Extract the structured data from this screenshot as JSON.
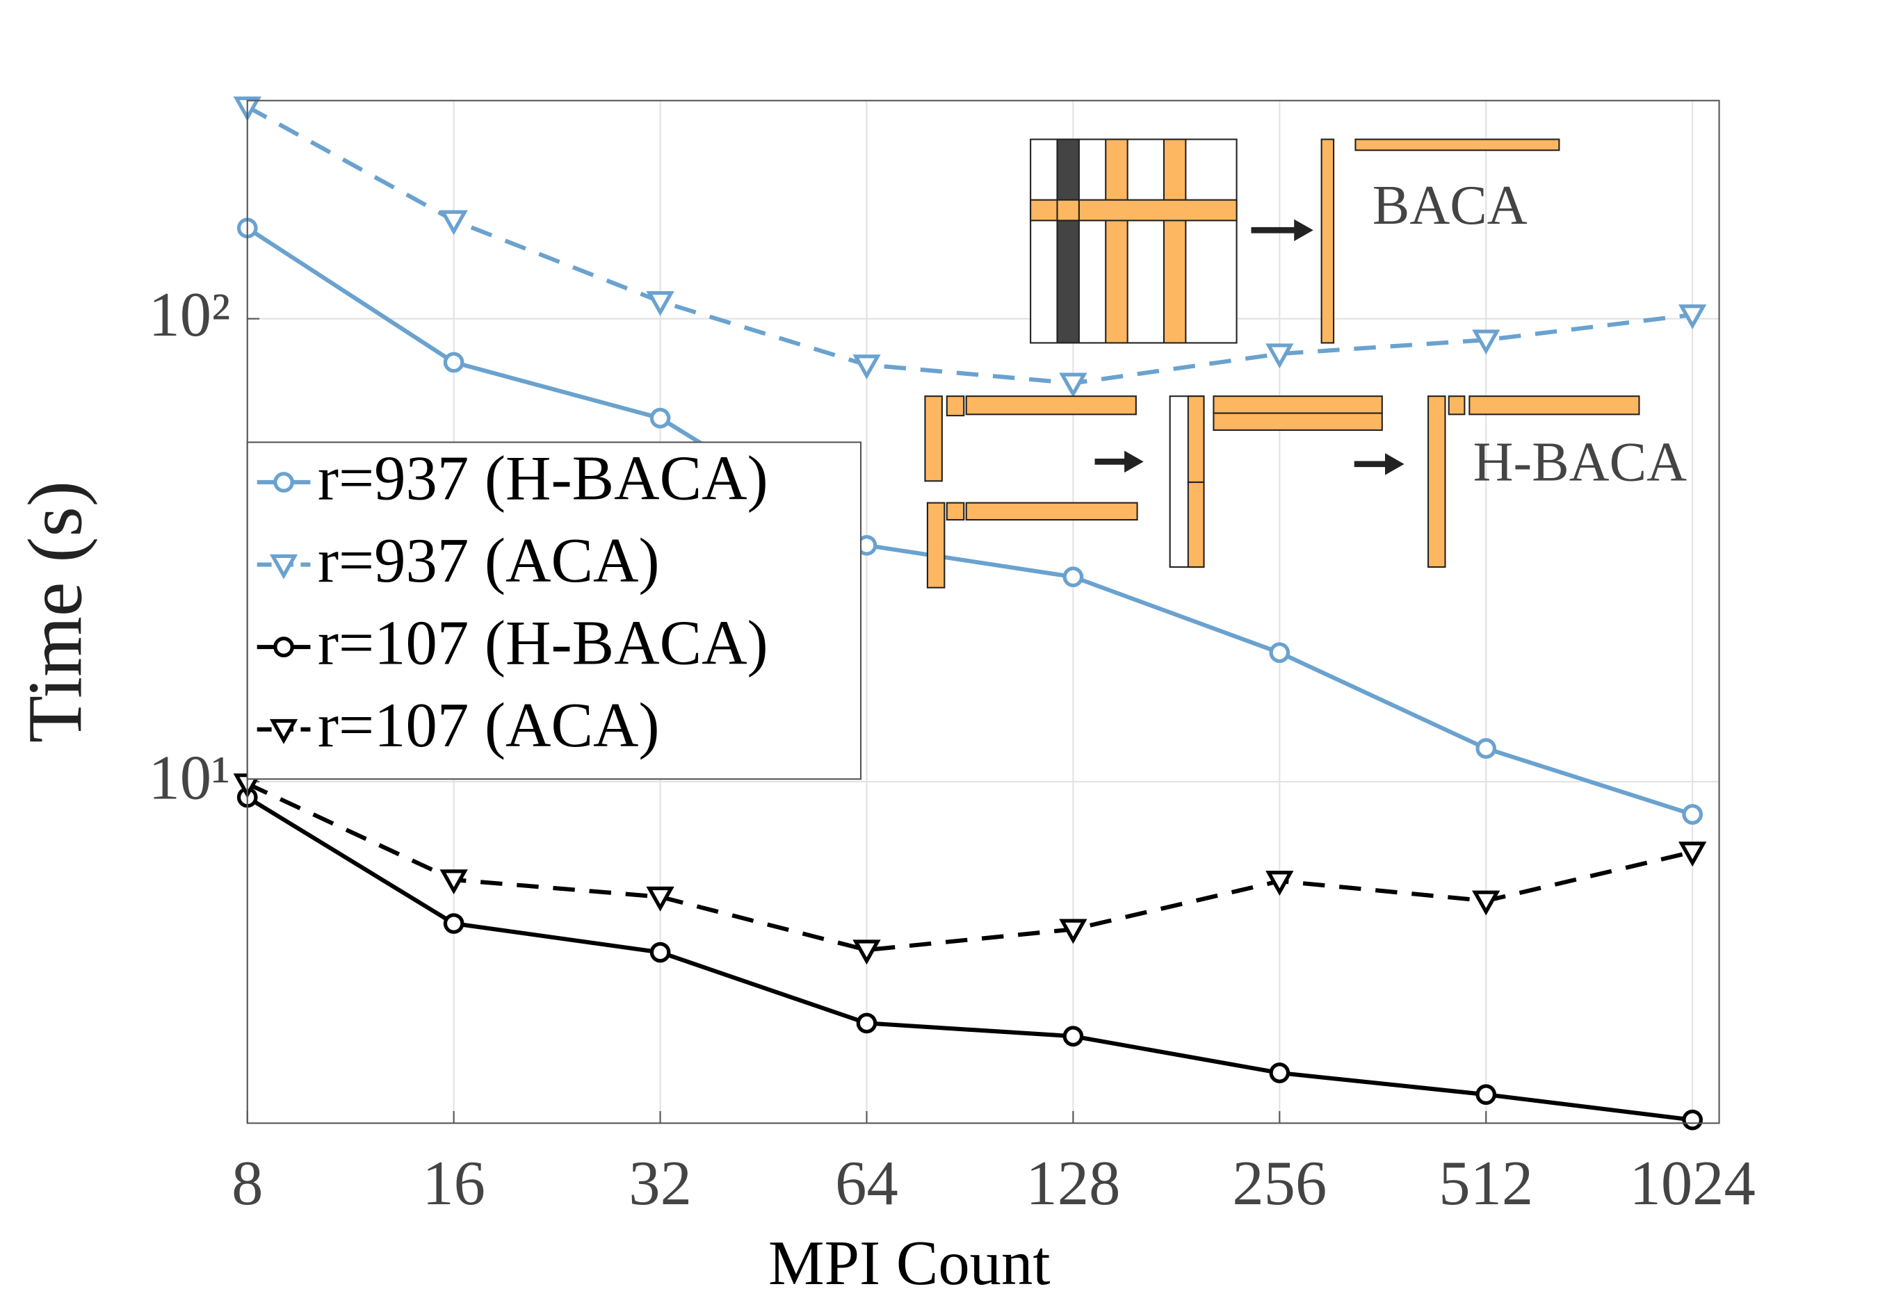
{
  "chart_data": {
    "type": "line",
    "x_label": "MPI Count",
    "y_label": "Time (s)",
    "x": [
      8,
      16,
      32,
      64,
      128,
      256,
      512,
      1024
    ],
    "series": [
      {
        "name": "r=937 (H-BACA)",
        "color": "#6aa2cf",
        "marker": "o",
        "linestyle": "solid",
        "values": [
          157,
          80.5,
          61,
          32.4,
          27.7,
          19.0,
          11.8,
          8.5
        ]
      },
      {
        "name": "r=937 (ACA)",
        "color": "#6aa2cf",
        "marker": "v",
        "linestyle": "dashed",
        "values": [
          287,
          163,
          109,
          79.5,
          72.6,
          84,
          90,
          102
        ]
      },
      {
        "name": "r=107 (H-BACA)",
        "color": "#000000",
        "marker": "o",
        "linestyle": "solid",
        "values": [
          9.25,
          4.94,
          4.28,
          3.01,
          2.82,
          2.35,
          2.11,
          1.86
        ]
      },
      {
        "name": "r=107 (ACA)",
        "color": "#000000",
        "marker": "v",
        "linestyle": "dashed",
        "values": [
          9.9,
          6.14,
          5.64,
          4.33,
          4.8,
          6.1,
          5.53,
          7.05
        ]
      }
    ],
    "xlim": [
      8,
      1120
    ],
    "ylim": [
      1.83,
      296
    ],
    "xticks": [
      8,
      16,
      32,
      64,
      128,
      256,
      512,
      1024
    ],
    "yticks": [
      {
        "value": 10,
        "label": "10¹"
      },
      {
        "value": 100,
        "label": "10²"
      }
    ],
    "x_log": true,
    "y_log": true,
    "grid": true,
    "legend": "center left",
    "annotations": [
      "BACA",
      "H-BACA"
    ]
  }
}
